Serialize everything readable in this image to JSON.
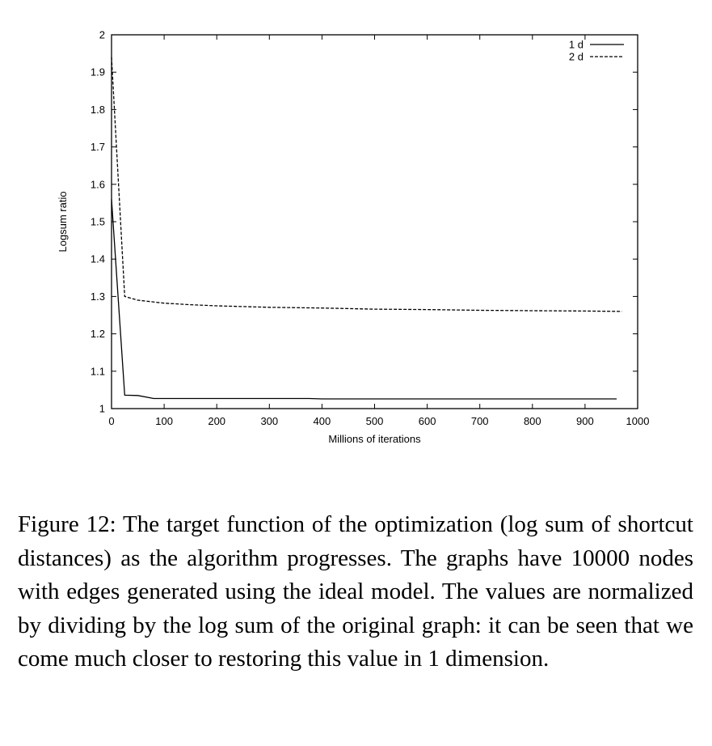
{
  "chart_data": {
    "type": "line",
    "xlabel": "Millions of iterations",
    "ylabel": "Logsum ratio",
    "xlim": [
      0,
      1000
    ],
    "ylim": [
      1,
      2
    ],
    "xticks": [
      0,
      100,
      200,
      300,
      400,
      500,
      600,
      700,
      800,
      900,
      1000
    ],
    "yticks": [
      1,
      1.1,
      1.2,
      1.3,
      1.4,
      1.5,
      1.6,
      1.7,
      1.8,
      1.9,
      2
    ],
    "xtick_labels": [
      "0",
      "100",
      "200",
      "300",
      "400",
      "500",
      "600",
      "700",
      "800",
      "900",
      "1000"
    ],
    "ytick_labels": [
      "1",
      "1.1",
      "1.2",
      "1.3",
      "1.4",
      "1.5",
      "1.6",
      "1.7",
      "1.8",
      "1.9",
      "2"
    ],
    "legend_position": "top-right",
    "grid": false,
    "series": [
      {
        "name": "1 d",
        "style": "solid",
        "color": "#000000",
        "points": [
          [
            0,
            1.56
          ],
          [
            25,
            1.036
          ],
          [
            50,
            1.035
          ],
          [
            80,
            1.027
          ],
          [
            200,
            1.027
          ],
          [
            375,
            1.027
          ],
          [
            400,
            1.026
          ],
          [
            600,
            1.026
          ],
          [
            800,
            1.026
          ],
          [
            960,
            1.026
          ]
        ]
      },
      {
        "name": "2 d",
        "style": "dashed",
        "color": "#000000",
        "points": [
          [
            0,
            1.94
          ],
          [
            25,
            1.3
          ],
          [
            50,
            1.29
          ],
          [
            100,
            1.282
          ],
          [
            150,
            1.278
          ],
          [
            200,
            1.275
          ],
          [
            300,
            1.271
          ],
          [
            400,
            1.269
          ],
          [
            500,
            1.266
          ],
          [
            600,
            1.265
          ],
          [
            700,
            1.263
          ],
          [
            800,
            1.262
          ],
          [
            900,
            1.261
          ],
          [
            970,
            1.26
          ]
        ]
      }
    ]
  },
  "caption": "Figure 12: The target function of the optimization (log sum of shortcut distances) as the algorithm progresses. The graphs have 10000 nodes with edges generated using the ideal model. The values are normalized by dividing by the log sum of the original graph: it can be seen that we come much closer to restoring this value in 1 dimension."
}
